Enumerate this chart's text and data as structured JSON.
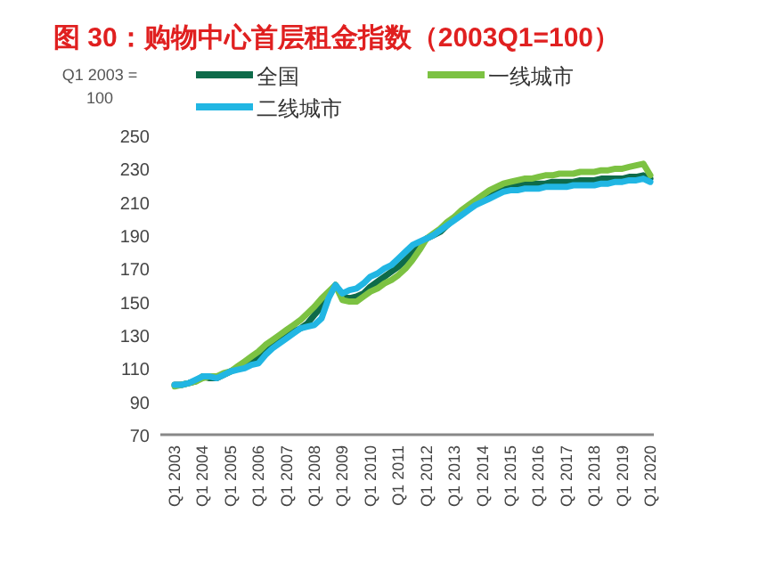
{
  "chart_data": {
    "type": "line",
    "title": "图 30：购物中心首层租金指数（2003Q1=100）",
    "ylabel": "Q1 2003 = 100",
    "legend": "top left",
    "grid": false,
    "marker": "none",
    "line_style": "solid",
    "categories": [
      "Q1 2003",
      null,
      null,
      null,
      "Q1 2004",
      null,
      null,
      null,
      "Q1 2005",
      null,
      null,
      null,
      "Q1 2006",
      null,
      null,
      null,
      "Q1 2007",
      null,
      null,
      null,
      "Q1 2008",
      null,
      null,
      null,
      "Q1 2009",
      null,
      null,
      null,
      "Q1 2010",
      null,
      null,
      null,
      "Q1 2011",
      null,
      null,
      null,
      "Q1 2012",
      null,
      null,
      null,
      "Q1 2013",
      null,
      null,
      null,
      "Q1 2014",
      null,
      null,
      null,
      "Q1 2015",
      null,
      null,
      null,
      "Q1 2016",
      null,
      null,
      null,
      "Q1 2017",
      null,
      null,
      null,
      "Q1 2018",
      null,
      null,
      null,
      "Q1 2019",
      null,
      null,
      null,
      "Q1 2020"
    ],
    "ylim": [
      70,
      250
    ],
    "yticks": [
      70,
      90,
      110,
      130,
      150,
      170,
      190,
      210,
      230,
      250
    ],
    "series": [
      {
        "name": "全国",
        "color": "#0e6b4a",
        "values": [
          100,
          100,
          101,
          102,
          105,
          104,
          104,
          106,
          108,
          110,
          112,
          114,
          116,
          120,
          123,
          126,
          130,
          132,
          134,
          137,
          142,
          147,
          155,
          160,
          153,
          152,
          153,
          155,
          159,
          162,
          165,
          168,
          171,
          175,
          179,
          183,
          188,
          190,
          192,
          196,
          200,
          203,
          206,
          209,
          212,
          215,
          217,
          218,
          220,
          220,
          221,
          221,
          221,
          221,
          222,
          222,
          222,
          222,
          223,
          223,
          223,
          224,
          224,
          224,
          224,
          225,
          225,
          226,
          224
        ]
      },
      {
        "name": "一线城市",
        "color": "#7cc242",
        "values": [
          99,
          100,
          101,
          102,
          104,
          105,
          105,
          107,
          108,
          111,
          114,
          117,
          120,
          124,
          127,
          130,
          133,
          136,
          139,
          143,
          147,
          152,
          156,
          160,
          151,
          150,
          150,
          153,
          156,
          158,
          161,
          163,
          166,
          170,
          175,
          181,
          188,
          191,
          194,
          198,
          201,
          205,
          208,
          211,
          214,
          217,
          219,
          221,
          222,
          223,
          224,
          224,
          225,
          226,
          226,
          227,
          227,
          227,
          228,
          228,
          228,
          229,
          229,
          230,
          230,
          231,
          232,
          233,
          226
        ]
      },
      {
        "name": "二线城市",
        "color": "#21b6e3",
        "values": [
          100,
          100,
          101,
          103,
          105,
          105,
          104,
          106,
          108,
          109,
          110,
          112,
          113,
          118,
          122,
          125,
          128,
          131,
          134,
          135,
          136,
          140,
          152,
          160,
          155,
          157,
          158,
          161,
          165,
          167,
          170,
          172,
          176,
          180,
          184,
          186,
          188,
          190,
          193,
          196,
          199,
          202,
          205,
          208,
          210,
          212,
          214,
          216,
          217,
          217,
          218,
          218,
          218,
          219,
          219,
          219,
          219,
          220,
          220,
          220,
          220,
          221,
          221,
          222,
          222,
          223,
          223,
          224,
          222
        ]
      }
    ]
  }
}
